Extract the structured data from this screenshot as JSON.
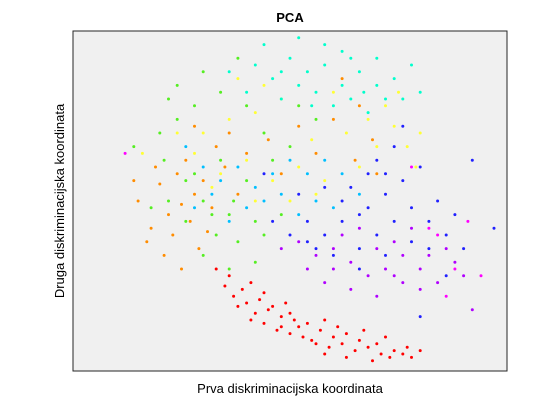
{
  "chart_data": {
    "type": "scatter",
    "title": "PCA",
    "xlabel": "Prva diskriminacijska koordinata",
    "ylabel": "Druga diskriminacijska koordinata",
    "xlim": [
      0,
      1
    ],
    "ylim": [
      0,
      1
    ],
    "x_ticks": [],
    "y_ticks": [],
    "grid": false,
    "legend": "none",
    "plot_background": "#f0f0f0",
    "series": [
      {
        "color": "#ff0000",
        "points": [
          [
            0.41,
            0.15
          ],
          [
            0.44,
            0.14
          ],
          [
            0.47,
            0.12
          ],
          [
            0.5,
            0.11
          ],
          [
            0.53,
            0.1
          ],
          [
            0.56,
            0.08
          ],
          [
            0.59,
            0.07
          ],
          [
            0.62,
            0.08
          ],
          [
            0.65,
            0.06
          ],
          [
            0.68,
            0.07
          ],
          [
            0.71,
            0.05
          ],
          [
            0.74,
            0.06
          ],
          [
            0.77,
            0.07
          ],
          [
            0.58,
            0.05
          ],
          [
            0.63,
            0.04
          ],
          [
            0.69,
            0.03
          ],
          [
            0.73,
            0.04
          ],
          [
            0.76,
            0.05
          ],
          [
            0.52,
            0.13
          ],
          [
            0.48,
            0.16
          ],
          [
            0.45,
            0.18
          ],
          [
            0.4,
            0.2
          ],
          [
            0.37,
            0.22
          ],
          [
            0.35,
            0.25
          ],
          [
            0.39,
            0.24
          ],
          [
            0.43,
            0.21
          ],
          [
            0.46,
            0.19
          ],
          [
            0.5,
            0.17
          ],
          [
            0.54,
            0.14
          ],
          [
            0.57,
            0.12
          ],
          [
            0.6,
            0.1
          ],
          [
            0.63,
            0.11
          ],
          [
            0.66,
            0.09
          ],
          [
            0.7,
            0.08
          ],
          [
            0.72,
            0.1
          ],
          [
            0.55,
            0.09
          ],
          [
            0.51,
            0.15
          ],
          [
            0.48,
            0.13
          ],
          [
            0.42,
            0.17
          ],
          [
            0.38,
            0.19
          ],
          [
            0.44,
            0.23
          ],
          [
            0.49,
            0.2
          ],
          [
            0.58,
            0.15
          ],
          [
            0.61,
            0.13
          ],
          [
            0.67,
            0.12
          ],
          [
            0.78,
            0.04
          ],
          [
            0.8,
            0.06
          ],
          [
            0.36,
            0.28
          ],
          [
            0.33,
            0.3
          ],
          [
            0.41,
            0.26
          ]
        ]
      },
      {
        "color": "#ff8c00",
        "points": [
          [
            0.22,
            0.46
          ],
          [
            0.25,
            0.49
          ],
          [
            0.28,
            0.52
          ],
          [
            0.2,
            0.55
          ],
          [
            0.24,
            0.58
          ],
          [
            0.3,
            0.56
          ],
          [
            0.18,
            0.42
          ],
          [
            0.27,
            0.44
          ],
          [
            0.32,
            0.48
          ],
          [
            0.35,
            0.6
          ],
          [
            0.26,
            0.62
          ],
          [
            0.23,
            0.4
          ],
          [
            0.29,
            0.36
          ],
          [
            0.21,
            0.34
          ],
          [
            0.15,
            0.5
          ],
          [
            0.19,
            0.6
          ],
          [
            0.33,
            0.66
          ],
          [
            0.38,
            0.52
          ],
          [
            0.31,
            0.41
          ],
          [
            0.25,
            0.3
          ],
          [
            0.17,
            0.38
          ],
          [
            0.36,
            0.7
          ],
          [
            0.45,
            0.68
          ],
          [
            0.52,
            0.72
          ],
          [
            0.6,
            0.74
          ],
          [
            0.65,
            0.62
          ],
          [
            0.7,
            0.58
          ],
          [
            0.14,
            0.56
          ],
          [
            0.28,
            0.72
          ],
          [
            0.4,
            0.64
          ],
          [
            0.48,
            0.58
          ],
          [
            0.56,
            0.64
          ],
          [
            0.62,
            0.86
          ],
          [
            0.66,
            0.78
          ],
          [
            0.69,
            0.68
          ]
        ]
      },
      {
        "color": "#ffff33",
        "points": [
          [
            0.3,
            0.7
          ],
          [
            0.36,
            0.74
          ],
          [
            0.42,
            0.76
          ],
          [
            0.48,
            0.8
          ],
          [
            0.55,
            0.68
          ],
          [
            0.63,
            0.7
          ],
          [
            0.7,
            0.66
          ],
          [
            0.74,
            0.72
          ],
          [
            0.77,
            0.66
          ],
          [
            0.8,
            0.7
          ],
          [
            0.34,
            0.58
          ],
          [
            0.4,
            0.62
          ],
          [
            0.46,
            0.56
          ],
          [
            0.52,
            0.6
          ],
          [
            0.58,
            0.56
          ],
          [
            0.44,
            0.84
          ],
          [
            0.38,
            0.86
          ],
          [
            0.66,
            0.6
          ],
          [
            0.72,
            0.78
          ],
          [
            0.6,
            0.82
          ],
          [
            0.28,
            0.64
          ],
          [
            0.32,
            0.54
          ],
          [
            0.5,
            0.5
          ],
          [
            0.56,
            0.52
          ],
          [
            0.68,
            0.74
          ],
          [
            0.75,
            0.82
          ],
          [
            0.79,
            0.6
          ],
          [
            0.16,
            0.64
          ],
          [
            0.24,
            0.7
          ],
          [
            0.42,
            0.5
          ]
        ]
      },
      {
        "color": "#55ee22",
        "points": [
          [
            0.2,
            0.7
          ],
          [
            0.24,
            0.74
          ],
          [
            0.28,
            0.78
          ],
          [
            0.34,
            0.82
          ],
          [
            0.4,
            0.78
          ],
          [
            0.26,
            0.56
          ],
          [
            0.3,
            0.5
          ],
          [
            0.36,
            0.46
          ],
          [
            0.42,
            0.44
          ],
          [
            0.48,
            0.46
          ],
          [
            0.22,
            0.5
          ],
          [
            0.18,
            0.48
          ],
          [
            0.33,
            0.4
          ],
          [
            0.38,
            0.38
          ],
          [
            0.44,
            0.4
          ],
          [
            0.3,
            0.88
          ],
          [
            0.38,
            0.92
          ],
          [
            0.24,
            0.84
          ],
          [
            0.52,
            0.78
          ],
          [
            0.56,
            0.74
          ],
          [
            0.46,
            0.62
          ],
          [
            0.4,
            0.56
          ],
          [
            0.34,
            0.62
          ],
          [
            0.28,
            0.58
          ],
          [
            0.21,
            0.62
          ],
          [
            0.26,
            0.44
          ],
          [
            0.32,
            0.46
          ],
          [
            0.37,
            0.5
          ],
          [
            0.14,
            0.66
          ],
          [
            0.22,
            0.8
          ],
          [
            0.44,
            0.7
          ],
          [
            0.5,
            0.66
          ],
          [
            0.36,
            0.3
          ],
          [
            0.42,
            0.32
          ],
          [
            0.3,
            0.34
          ]
        ]
      },
      {
        "color": "#00ffcc",
        "points": [
          [
            0.42,
            0.9
          ],
          [
            0.46,
            0.86
          ],
          [
            0.5,
            0.92
          ],
          [
            0.54,
            0.88
          ],
          [
            0.58,
            0.9
          ],
          [
            0.62,
            0.94
          ],
          [
            0.66,
            0.88
          ],
          [
            0.7,
            0.84
          ],
          [
            0.74,
            0.86
          ],
          [
            0.78,
            0.9
          ],
          [
            0.48,
            0.8
          ],
          [
            0.52,
            0.84
          ],
          [
            0.56,
            0.82
          ],
          [
            0.6,
            0.78
          ],
          [
            0.64,
            0.8
          ],
          [
            0.68,
            0.76
          ],
          [
            0.72,
            0.8
          ],
          [
            0.44,
            0.96
          ],
          [
            0.52,
            0.98
          ],
          [
            0.58,
            0.96
          ],
          [
            0.64,
            0.92
          ],
          [
            0.4,
            0.82
          ],
          [
            0.36,
            0.88
          ],
          [
            0.7,
            0.92
          ],
          [
            0.76,
            0.8
          ],
          [
            0.8,
            0.82
          ],
          [
            0.48,
            0.88
          ],
          [
            0.55,
            0.78
          ],
          [
            0.62,
            0.84
          ],
          [
            0.67,
            0.82
          ]
        ]
      },
      {
        "color": "#00bfff",
        "points": [
          [
            0.3,
            0.6
          ],
          [
            0.34,
            0.56
          ],
          [
            0.38,
            0.6
          ],
          [
            0.42,
            0.54
          ],
          [
            0.46,
            0.58
          ],
          [
            0.5,
            0.62
          ],
          [
            0.54,
            0.58
          ],
          [
            0.4,
            0.48
          ],
          [
            0.44,
            0.5
          ],
          [
            0.48,
            0.52
          ],
          [
            0.52,
            0.46
          ],
          [
            0.56,
            0.5
          ],
          [
            0.36,
            0.44
          ],
          [
            0.32,
            0.52
          ],
          [
            0.58,
            0.62
          ],
          [
            0.62,
            0.58
          ],
          [
            0.66,
            0.52
          ],
          [
            0.28,
            0.48
          ],
          [
            0.26,
            0.66
          ],
          [
            0.6,
            0.48
          ]
        ]
      },
      {
        "color": "#2020ff",
        "points": [
          [
            0.46,
            0.44
          ],
          [
            0.5,
            0.4
          ],
          [
            0.54,
            0.44
          ],
          [
            0.58,
            0.4
          ],
          [
            0.62,
            0.44
          ],
          [
            0.66,
            0.46
          ],
          [
            0.7,
            0.4
          ],
          [
            0.74,
            0.44
          ],
          [
            0.78,
            0.48
          ],
          [
            0.82,
            0.44
          ],
          [
            0.86,
            0.4
          ],
          [
            0.64,
            0.54
          ],
          [
            0.68,
            0.58
          ],
          [
            0.72,
            0.52
          ],
          [
            0.76,
            0.56
          ],
          [
            0.8,
            0.6
          ],
          [
            0.84,
            0.5
          ],
          [
            0.6,
            0.34
          ],
          [
            0.66,
            0.36
          ],
          [
            0.72,
            0.34
          ],
          [
            0.78,
            0.38
          ],
          [
            0.56,
            0.36
          ],
          [
            0.52,
            0.52
          ],
          [
            0.88,
            0.46
          ],
          [
            0.9,
            0.36
          ],
          [
            0.74,
            0.66
          ],
          [
            0.7,
            0.62
          ],
          [
            0.76,
            0.72
          ],
          [
            0.82,
            0.36
          ],
          [
            0.62,
            0.5
          ],
          [
            0.68,
            0.48
          ],
          [
            0.44,
            0.58
          ],
          [
            0.58,
            0.54
          ],
          [
            0.8,
            0.16
          ],
          [
            0.92,
            0.62
          ],
          [
            0.97,
            0.42
          ],
          [
            0.86,
            0.28
          ],
          [
            0.66,
            0.3
          ],
          [
            0.54,
            0.38
          ],
          [
            0.72,
            0.58
          ]
        ]
      },
      {
        "color": "#b000ff",
        "points": [
          [
            0.52,
            0.38
          ],
          [
            0.56,
            0.34
          ],
          [
            0.6,
            0.3
          ],
          [
            0.64,
            0.32
          ],
          [
            0.68,
            0.28
          ],
          [
            0.72,
            0.3
          ],
          [
            0.76,
            0.34
          ],
          [
            0.8,
            0.3
          ],
          [
            0.84,
            0.26
          ],
          [
            0.88,
            0.32
          ],
          [
            0.62,
            0.4
          ],
          [
            0.66,
            0.42
          ],
          [
            0.7,
            0.36
          ],
          [
            0.74,
            0.38
          ],
          [
            0.78,
            0.42
          ],
          [
            0.58,
            0.26
          ],
          [
            0.64,
            0.24
          ],
          [
            0.7,
            0.22
          ],
          [
            0.76,
            0.26
          ],
          [
            0.82,
            0.34
          ],
          [
            0.86,
            0.36
          ],
          [
            0.9,
            0.28
          ],
          [
            0.92,
            0.18
          ],
          [
            0.54,
            0.3
          ],
          [
            0.48,
            0.36
          ],
          [
            0.6,
            0.36
          ],
          [
            0.74,
            0.28
          ],
          [
            0.8,
            0.24
          ]
        ]
      },
      {
        "color": "#ff00ff",
        "points": [
          [
            0.12,
            0.64
          ],
          [
            0.91,
            0.44
          ],
          [
            0.84,
            0.4
          ],
          [
            0.88,
            0.3
          ],
          [
            0.78,
            0.6
          ],
          [
            0.94,
            0.28
          ],
          [
            0.86,
            0.22
          ],
          [
            0.82,
            0.42
          ]
        ]
      }
    ]
  }
}
